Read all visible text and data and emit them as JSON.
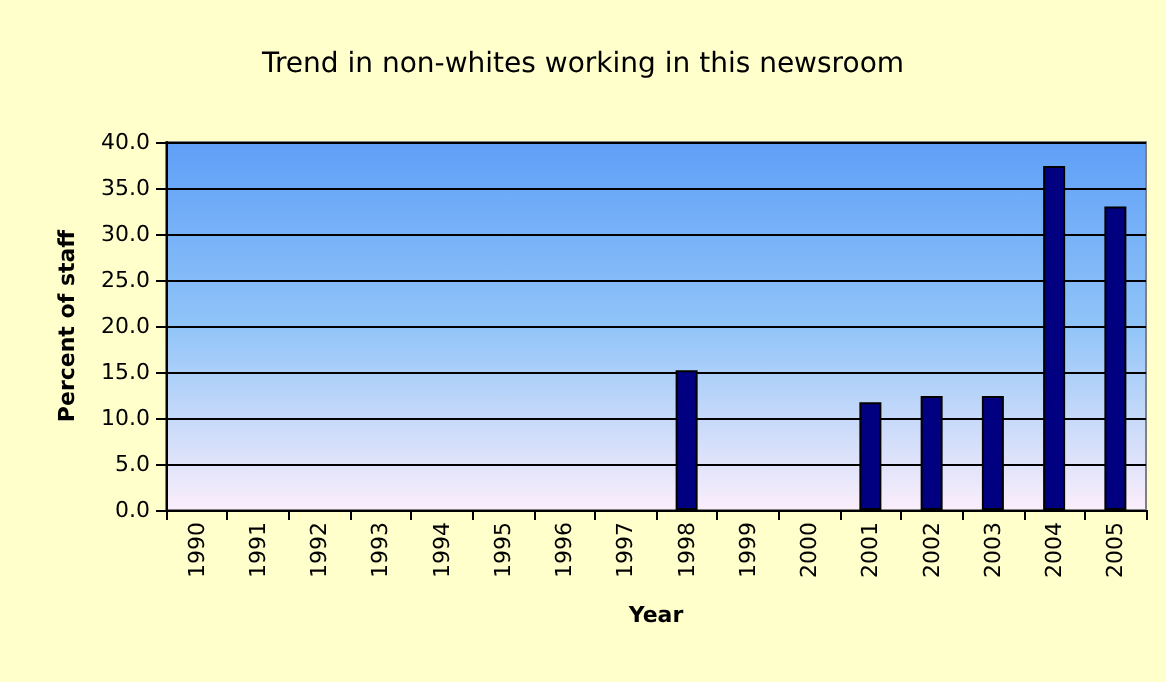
{
  "chart_data": {
    "type": "bar",
    "title": "Trend in non-whites working in this newsroom",
    "xlabel": "Year",
    "ylabel": "Percent of staff",
    "categories": [
      "1990",
      "1991",
      "1992",
      "1993",
      "1994",
      "1995",
      "1996",
      "1997",
      "1998",
      "1999",
      "2000",
      "2001",
      "2002",
      "2003",
      "2004",
      "2005"
    ],
    "values": [
      null,
      null,
      null,
      null,
      null,
      null,
      null,
      null,
      15.2,
      null,
      null,
      11.7,
      12.4,
      12.4,
      37.4,
      33.0
    ],
    "color": "#000080",
    "ylim": [
      0,
      40
    ],
    "yticks": [
      {
        "value": 0,
        "label": "0.0"
      },
      {
        "value": 5,
        "label": "5.0"
      },
      {
        "value": 10,
        "label": "10.0"
      },
      {
        "value": 15,
        "label": "15.0"
      },
      {
        "value": 20,
        "label": "20.0"
      },
      {
        "value": 25,
        "label": "25.0"
      },
      {
        "value": 30,
        "label": "30.0"
      },
      {
        "value": 35,
        "label": "35.0"
      },
      {
        "value": 40,
        "label": "40.0"
      }
    ],
    "grid": "y"
  }
}
